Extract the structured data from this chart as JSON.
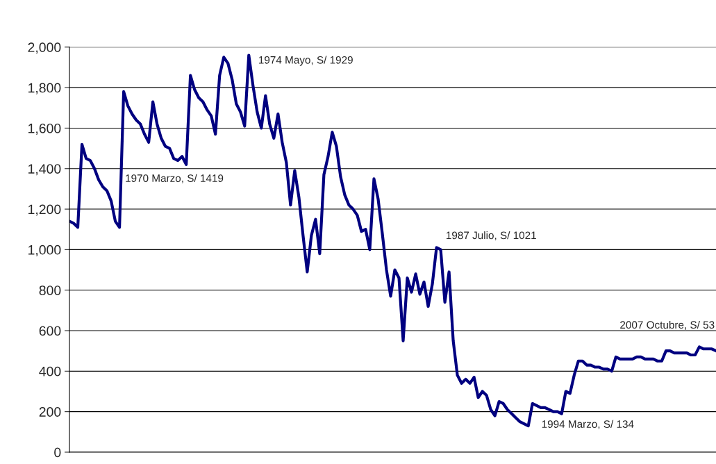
{
  "chart_data": {
    "type": "line",
    "categories": [
      null,
      null,
      null,
      null,
      null,
      null,
      null,
      null,
      null,
      null,
      null,
      null,
      null,
      null,
      null,
      null,
      null,
      null,
      null,
      null,
      null,
      null,
      null,
      null,
      null,
      null,
      null,
      null,
      null,
      null,
      null,
      null,
      null,
      null,
      null,
      null,
      null,
      null,
      null,
      null,
      null,
      null,
      null,
      null,
      null,
      null,
      null,
      null,
      null,
      null,
      null,
      null,
      null,
      null,
      null,
      null,
      null,
      null,
      null,
      null,
      null,
      null,
      null,
      null,
      null,
      null,
      null,
      null,
      null,
      null,
      null,
      null,
      null,
      null,
      null,
      null,
      null,
      null,
      null,
      null,
      null,
      null,
      null,
      null,
      null,
      null,
      null,
      null,
      null,
      null,
      null,
      null,
      null,
      null,
      null,
      null,
      null,
      null,
      null,
      null,
      null,
      null,
      null,
      null,
      null,
      null,
      null,
      null,
      null,
      null,
      null,
      null,
      null,
      null,
      null,
      null,
      null,
      null,
      null,
      null,
      null,
      null,
      null,
      null,
      null,
      null,
      null,
      null,
      null,
      null,
      null,
      null,
      null,
      null,
      null,
      null,
      null,
      null,
      null,
      null,
      null,
      null,
      null,
      null,
      null,
      null,
      null,
      null,
      null,
      null,
      null,
      null,
      null,
      null,
      null,
      null
    ],
    "series": [
      {
        "color": "#000080",
        "values": [
          1140,
          1130,
          1110,
          1520,
          1450,
          1440,
          1400,
          1345,
          1310,
          1290,
          1240,
          1140,
          1110,
          1780,
          1710,
          1670,
          1640,
          1620,
          1570,
          1530,
          1730,
          1620,
          1550,
          1510,
          1500,
          1450,
          1440,
          1460,
          1420,
          1860,
          1790,
          1750,
          1730,
          1690,
          1660,
          1570,
          1860,
          1950,
          1920,
          1840,
          1720,
          1680,
          1610,
          1960,
          1810,
          1680,
          1600,
          1760,
          1620,
          1550,
          1670,
          1530,
          1430,
          1220,
          1390,
          1260,
          1070,
          890,
          1070,
          1150,
          980,
          1370,
          1460,
          1580,
          1510,
          1360,
          1270,
          1220,
          1200,
          1170,
          1090,
          1100,
          1000,
          1350,
          1250,
          1080,
          900,
          770,
          900,
          860,
          550,
          860,
          790,
          880,
          780,
          840,
          720,
          830,
          1010,
          1000,
          740,
          890,
          550,
          380,
          340,
          360,
          340,
          370,
          270,
          300,
          280,
          210,
          180,
          250,
          240,
          210,
          190,
          170,
          150,
          140,
          130,
          240,
          230,
          220,
          220,
          210,
          200,
          200,
          190,
          300,
          290,
          380,
          450,
          450,
          430,
          430,
          420,
          420,
          410,
          410,
          400,
          470,
          460,
          460,
          460,
          460,
          470,
          470,
          460,
          460,
          460,
          450,
          450,
          500,
          500,
          490,
          490,
          490,
          490,
          480,
          480,
          520,
          510,
          510,
          510,
          500
        ]
      }
    ],
    "ylim": [
      0,
      2000
    ],
    "yticks": [
      0,
      200,
      400,
      600,
      800,
      {
        "value": 1000,
        "label": "1,000"
      },
      {
        "value": 1200,
        "label": "1,200"
      },
      {
        "value": 1400,
        "label": "1,400"
      },
      {
        "value": 1600,
        "label": "1,600"
      },
      {
        "value": 1800,
        "label": "1,800"
      },
      {
        "value": 2000,
        "label": "2,000"
      }
    ],
    "grid": "y",
    "legend": false,
    "tick_labels": "y",
    "line_style": "solid",
    "marker": "none",
    "annotations": [
      "1970 Marzo, S/ 1419",
      "1974 Mayo, S/ 1929",
      "1987 Julio, S/ 1021",
      "1994 Marzo, S/ 134",
      "2007 Octubre, S/ 53"
    ]
  }
}
